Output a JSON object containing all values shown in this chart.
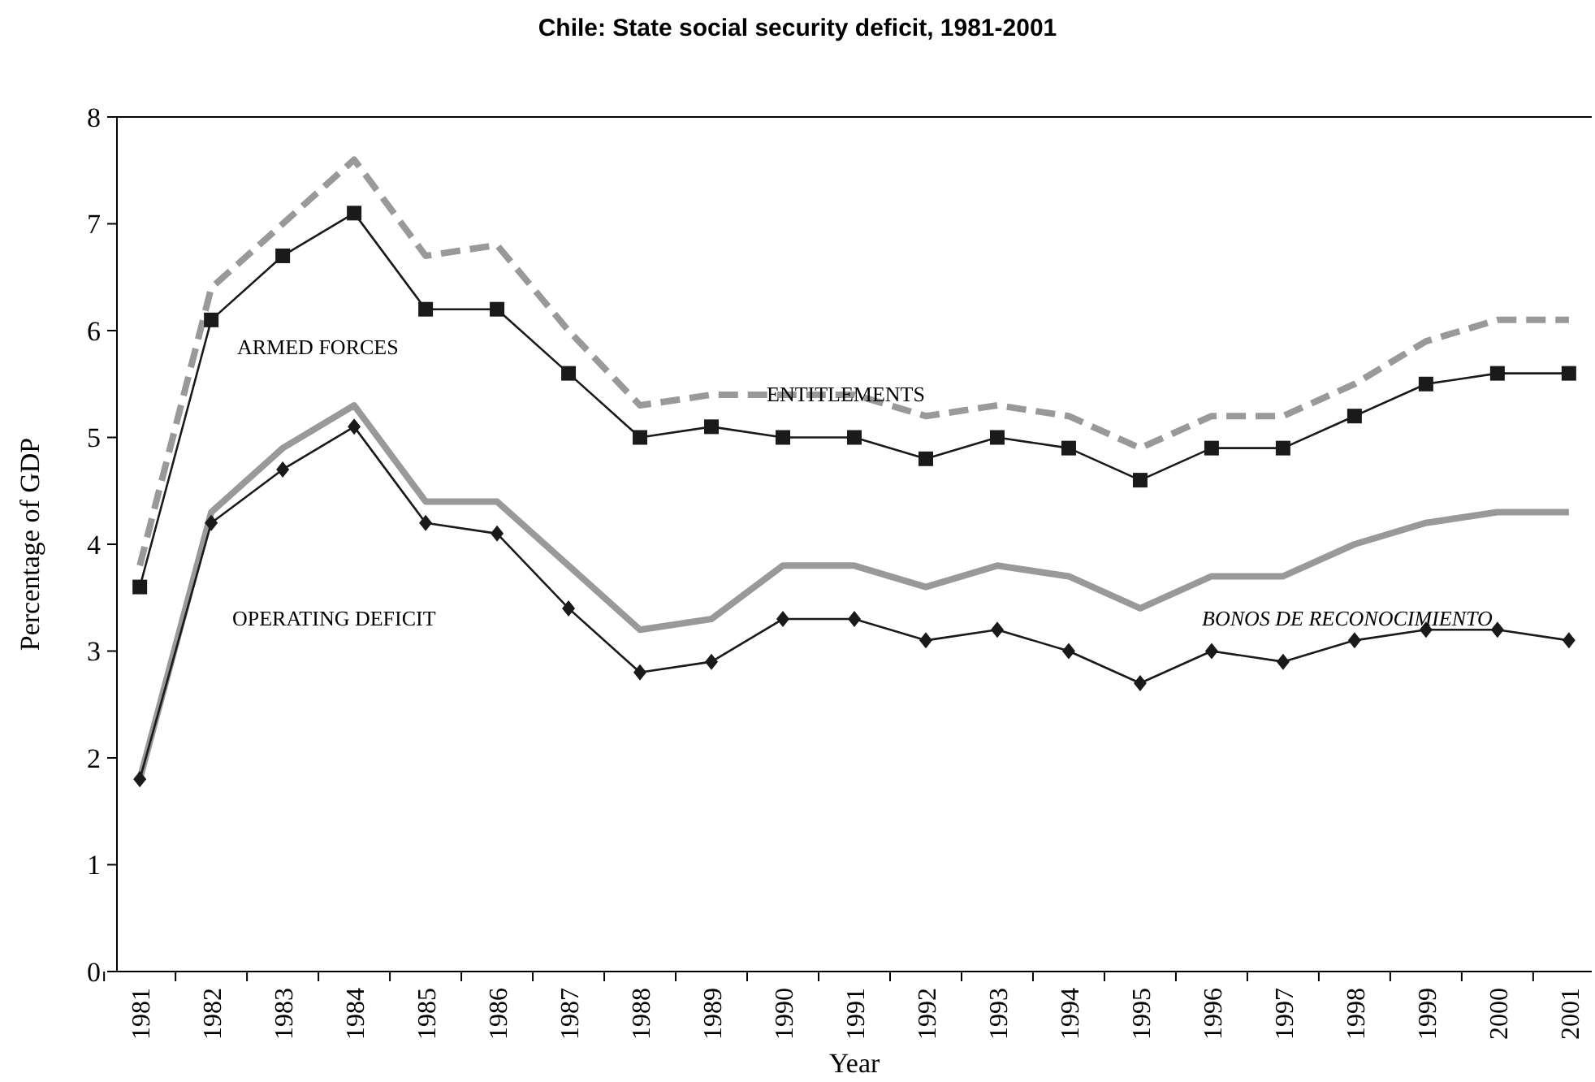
{
  "chart_data": {
    "type": "line",
    "title": "Chile: State social security deficit, 1981-2001",
    "xlabel": "Year",
    "ylabel": "Percentage of GDP",
    "categories": [
      "1981",
      "1982",
      "1983",
      "1984",
      "1985",
      "1986",
      "1987",
      "1988",
      "1989",
      "1990",
      "1991",
      "1992",
      "1993",
      "1994",
      "1995",
      "1996",
      "1997",
      "1998",
      "1999",
      "2000",
      "2001"
    ],
    "ylim": [
      0,
      8
    ],
    "yticks": [
      0,
      1,
      2,
      3,
      4,
      5,
      6,
      7,
      8
    ],
    "grid": false,
    "series": [
      {
        "color": "#999999",
        "line_style": "dashed",
        "marker": "none",
        "values": [
          3.8,
          6.4,
          7.0,
          7.6,
          6.7,
          6.8,
          6.0,
          5.3,
          5.4,
          5.4,
          5.4,
          5.2,
          5.3,
          5.2,
          4.9,
          5.2,
          5.2,
          5.5,
          5.9,
          6.1,
          6.1
        ]
      },
      {
        "color": "#1a1a1a",
        "line_style": "solid",
        "marker": "square",
        "values": [
          3.6,
          6.1,
          6.7,
          7.1,
          6.2,
          6.2,
          5.6,
          5.0,
          5.1,
          5.0,
          5.0,
          4.8,
          5.0,
          4.9,
          4.6,
          4.9,
          4.9,
          5.2,
          5.5,
          5.6,
          5.6
        ]
      },
      {
        "color": "#999999",
        "line_style": "solid",
        "marker": "none",
        "values": [
          1.8,
          4.3,
          4.9,
          5.3,
          4.4,
          4.4,
          3.8,
          3.2,
          3.3,
          3.8,
          3.8,
          3.6,
          3.8,
          3.7,
          3.4,
          3.7,
          3.7,
          4.0,
          4.2,
          4.3,
          4.3
        ]
      },
      {
        "color": "#1a1a1a",
        "line_style": "solid",
        "marker": "diamond",
        "values": [
          1.8,
          4.2,
          4.7,
          5.1,
          4.2,
          4.1,
          3.4,
          2.8,
          2.9,
          3.3,
          3.3,
          3.1,
          3.2,
          3.0,
          2.7,
          3.0,
          2.9,
          3.1,
          3.2,
          3.2,
          3.1
        ]
      }
    ],
    "annotations": [
      "ARMED FORCES",
      "ENTITLEMENTS",
      "OPERATING DEFICIT",
      "BONOS DE RECONOCIMIENTO"
    ]
  }
}
